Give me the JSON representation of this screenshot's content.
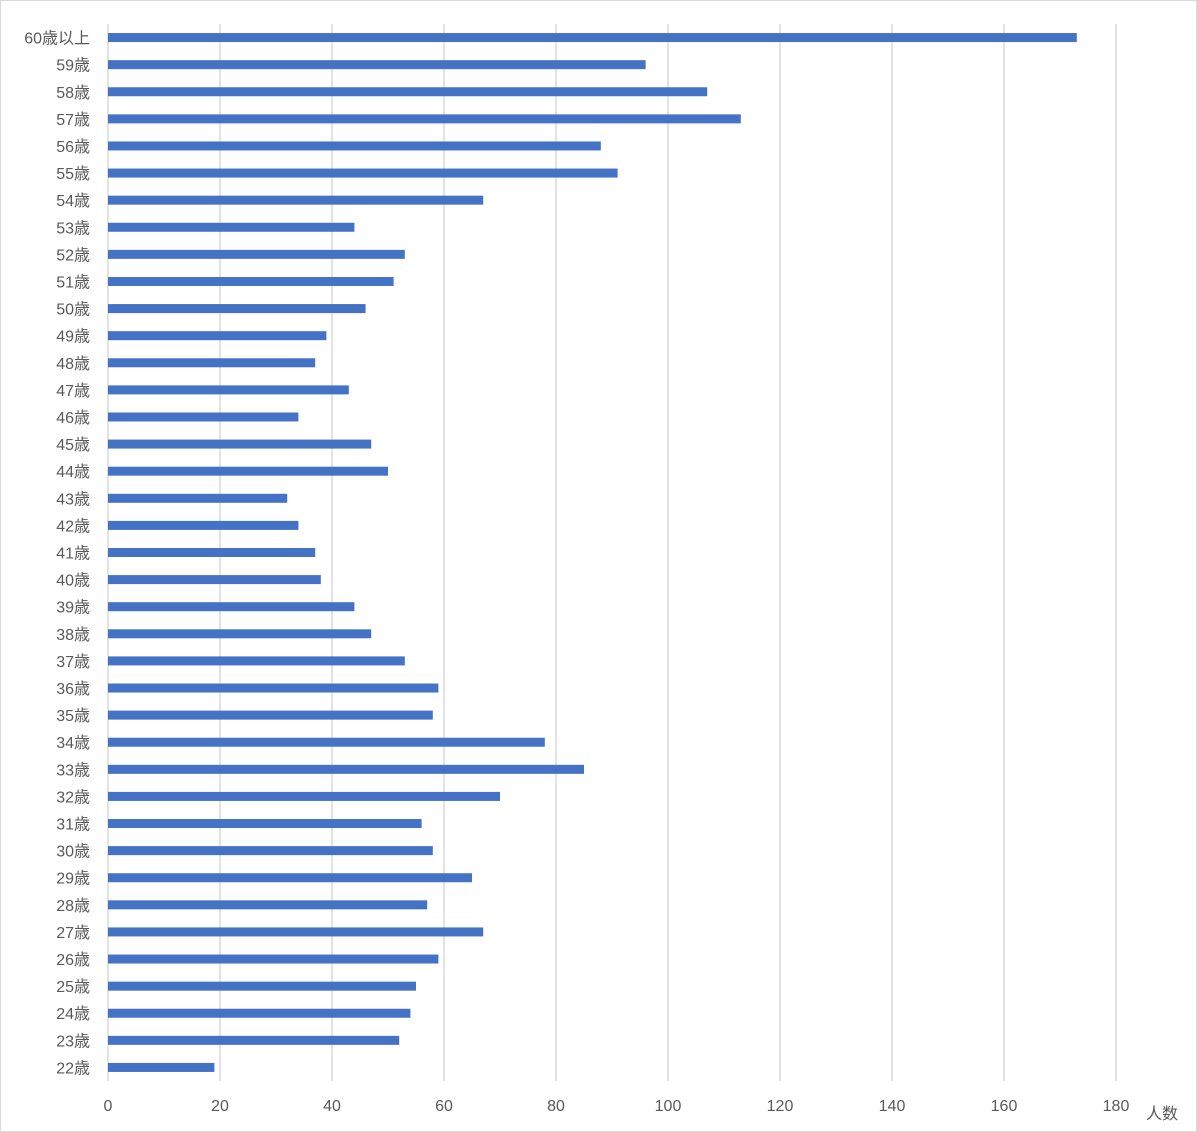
{
  "chart_data": {
    "type": "bar",
    "orientation": "horizontal",
    "categories": [
      "60歳以上",
      "59歳",
      "58歳",
      "57歳",
      "56歳",
      "55歳",
      "54歳",
      "53歳",
      "52歳",
      "51歳",
      "50歳",
      "49歳",
      "48歳",
      "47歳",
      "46歳",
      "45歳",
      "44歳",
      "43歳",
      "42歳",
      "41歳",
      "40歳",
      "39歳",
      "38歳",
      "37歳",
      "36歳",
      "35歳",
      "34歳",
      "33歳",
      "32歳",
      "31歳",
      "30歳",
      "29歳",
      "28歳",
      "27歳",
      "26歳",
      "25歳",
      "24歳",
      "23歳",
      "22歳"
    ],
    "values": [
      173,
      96,
      107,
      113,
      88,
      91,
      67,
      44,
      53,
      51,
      46,
      39,
      37,
      43,
      34,
      47,
      50,
      32,
      34,
      37,
      38,
      44,
      47,
      53,
      59,
      58,
      78,
      85,
      70,
      56,
      58,
      65,
      57,
      67,
      59,
      55,
      54,
      52,
      19
    ],
    "xlim": [
      0,
      180
    ],
    "xticks": [
      0,
      20,
      40,
      60,
      80,
      100,
      120,
      140,
      160,
      180
    ],
    "xlabel": "人数",
    "grid": true,
    "bar_color": "#4472C4",
    "grid_color": "#d9d9d9",
    "text_color": "#595959"
  }
}
